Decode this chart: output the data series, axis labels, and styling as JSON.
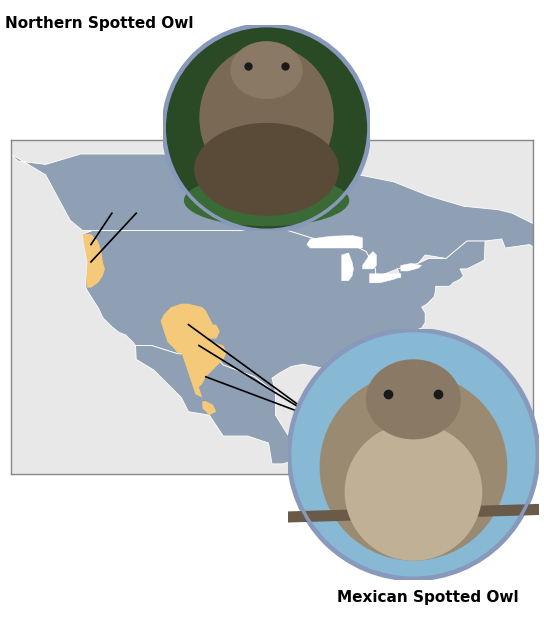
{
  "figsize": [
    5.44,
    6.4
  ],
  "dpi": 100,
  "background_color": "#ffffff",
  "map_bg_color": "#e8e8e8",
  "land_color": "#8fa0b4",
  "owl_range_color": "#f5c97a",
  "border_color": "#ffffff",
  "northern_label": "Northern Spotted Owl",
  "mexican_label": "Mexican Spotted Owl",
  "label_fontsize": 11,
  "map_xlim": [
    -135,
    -60
  ],
  "map_ylim": [
    14,
    62
  ],
  "map_border_color": "#888888",
  "ellipse_border_color": "#8899bb",
  "northern_owl_bg": "#2a4a2a",
  "mexican_owl_bg": "#7aaac0"
}
